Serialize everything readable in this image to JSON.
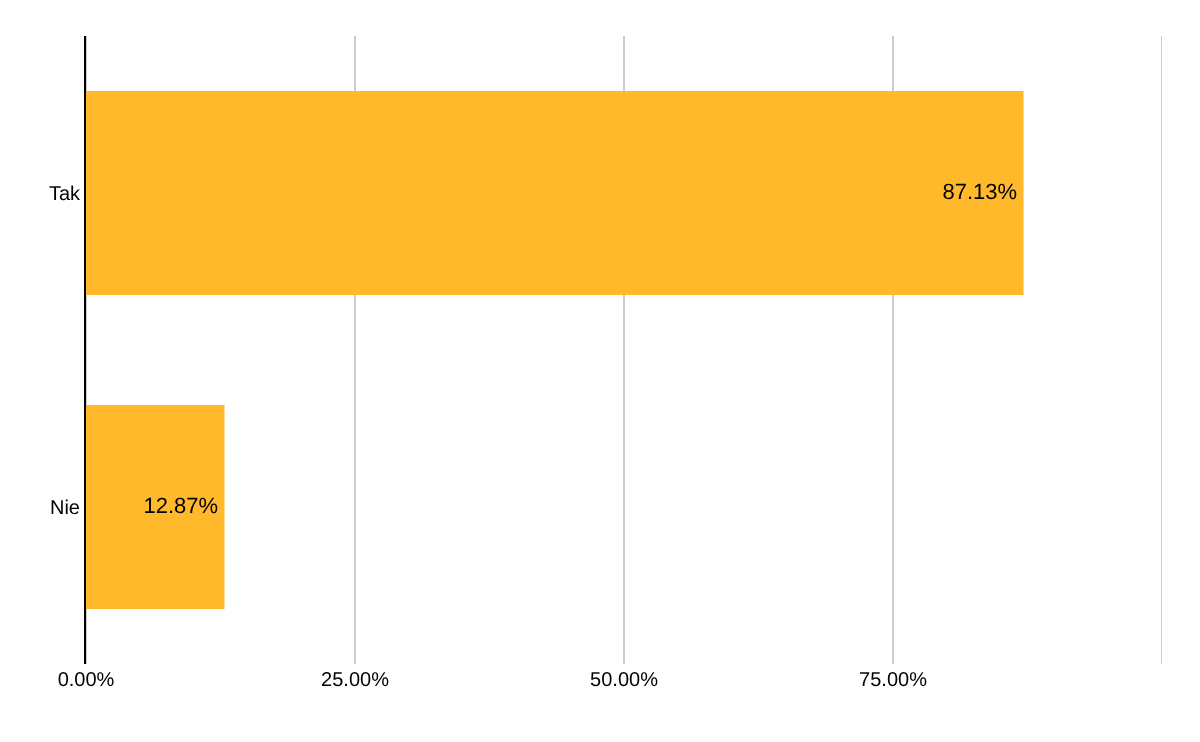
{
  "chart_data": {
    "type": "bar",
    "orientation": "horizontal",
    "categories": [
      "Tak",
      "Nie"
    ],
    "values": [
      87.13,
      12.87
    ],
    "value_labels": [
      "87.13%",
      "12.87%"
    ],
    "color": "#ffb92b",
    "xlim": [
      0,
      100
    ],
    "xticks": [
      {
        "value": 0,
        "label": "0.00%"
      },
      {
        "value": 25,
        "label": "25.00%"
      },
      {
        "value": 50,
        "label": "50.00%"
      },
      {
        "value": 75,
        "label": "75.00%"
      },
      {
        "value": 100,
        "label": null
      }
    ],
    "grid": "x"
  }
}
